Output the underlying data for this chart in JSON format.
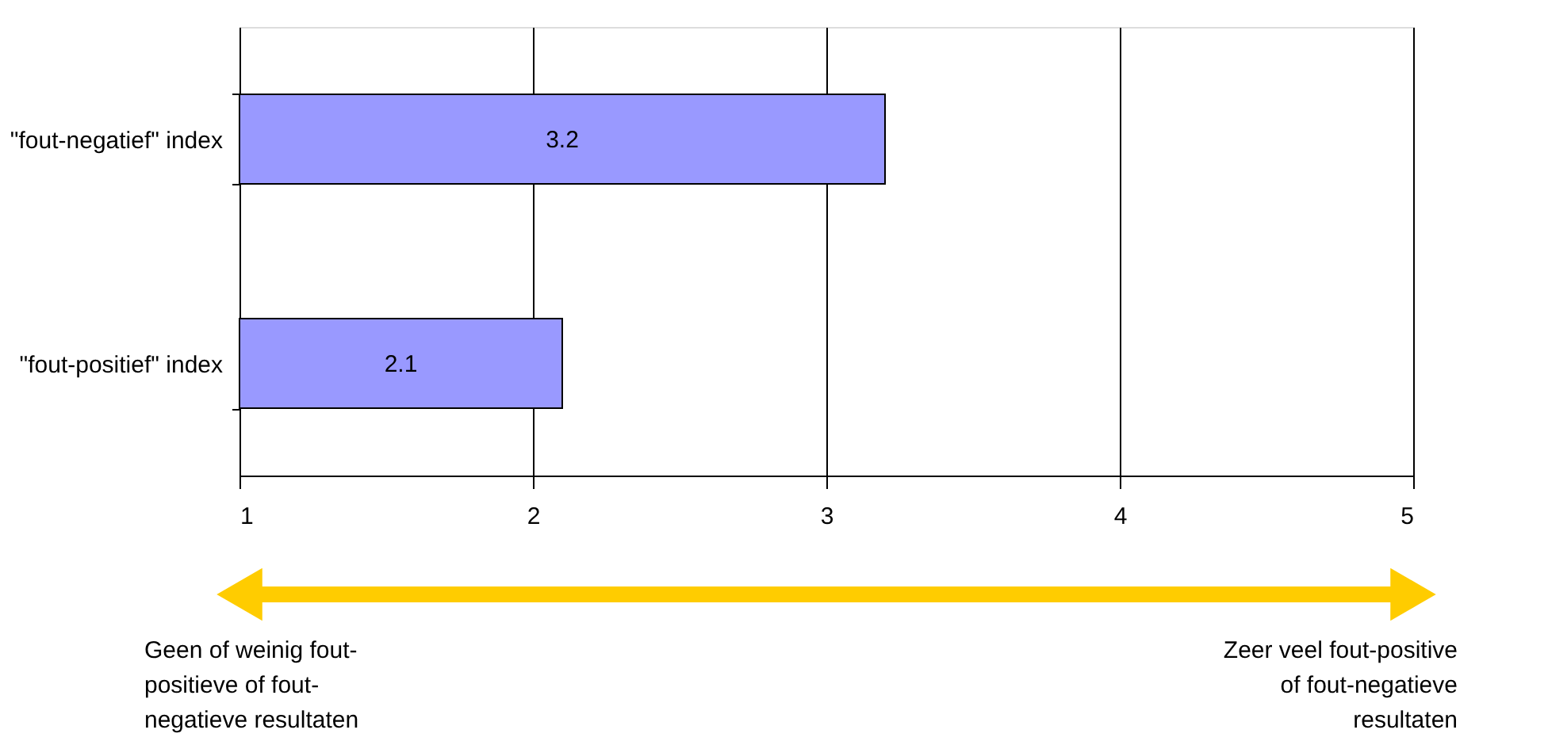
{
  "chart_data": {
    "type": "bar",
    "orientation": "horizontal",
    "categories": [
      "\"fout-negatief\" index",
      "\"fout-positief\" index"
    ],
    "values": [
      3.2,
      2.1
    ],
    "color": "#9999ff",
    "xlim": [
      1,
      5
    ],
    "xticks": [
      1,
      2,
      3,
      4,
      5
    ],
    "grid": "x",
    "data_labels": true,
    "annotations": [
      "Geen of weinig fout-\npositieve of fout-\nnegatieve resultaten",
      "Zeer veel fout-positive\nof fout-negatieve\nresultaten"
    ]
  }
}
